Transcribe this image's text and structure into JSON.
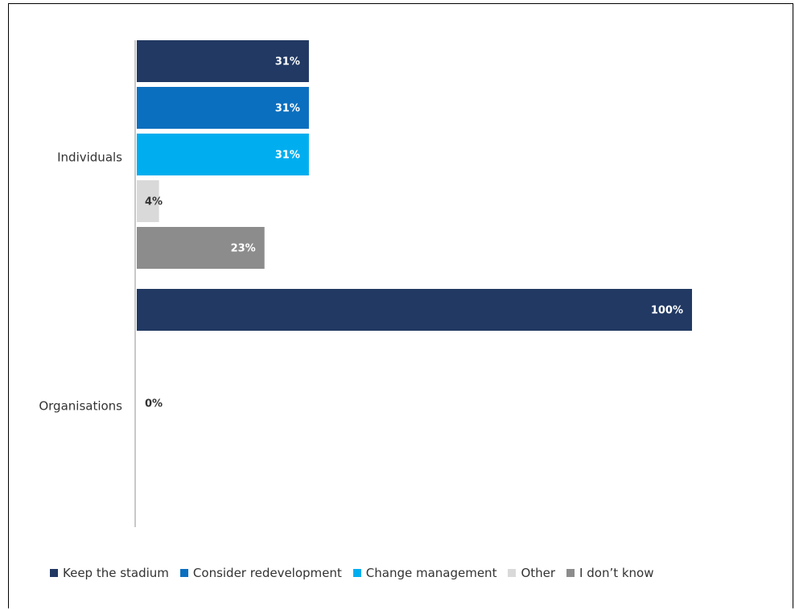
{
  "chart_data": {
    "type": "bar",
    "orientation": "horizontal",
    "categories": [
      "Individuals",
      "Organisations"
    ],
    "series": [
      {
        "name": "Keep the stadium",
        "color": "#213963",
        "values": [
          31,
          100
        ],
        "labels": [
          "31%",
          "100%"
        ]
      },
      {
        "name": "Consider redevelopment",
        "color": "#0B6FBF",
        "values": [
          31,
          0
        ],
        "labels": [
          "31%",
          ""
        ]
      },
      {
        "name": "Change management",
        "color": "#00AEEF",
        "values": [
          31,
          0
        ],
        "labels": [
          "31%",
          "0%"
        ]
      },
      {
        "name": "Other",
        "color": "#D9D9D9",
        "values": [
          4,
          0
        ],
        "labels": [
          "4%",
          ""
        ]
      },
      {
        "name": "I don’t know",
        "color": "#8C8C8C",
        "values": [
          23,
          0
        ],
        "labels": [
          "23%",
          ""
        ]
      }
    ],
    "xlim": [
      0,
      100
    ],
    "grid": false,
    "legend_position": "bottom"
  }
}
